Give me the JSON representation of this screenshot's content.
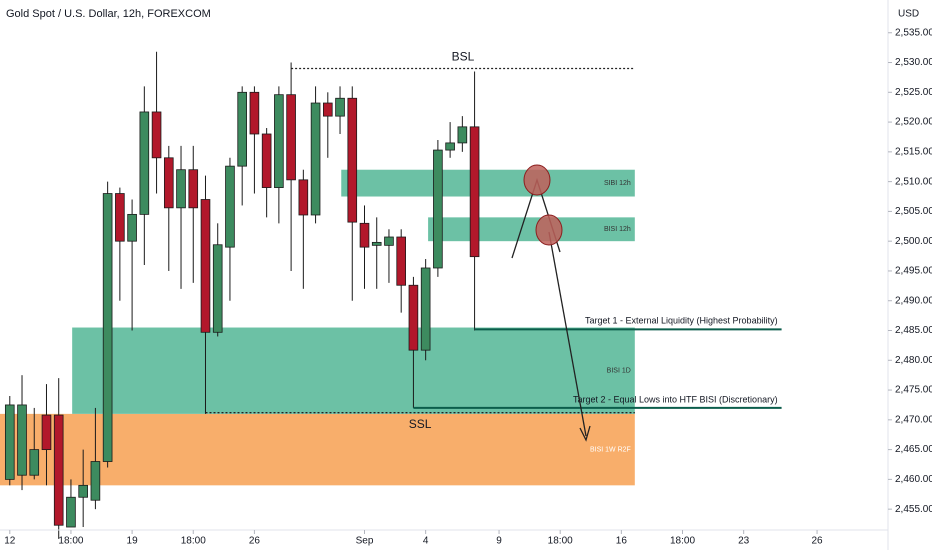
{
  "chart_data": {
    "type": "candlestick",
    "title": "Gold Spot / U.S. Dollar, 12h, FOREXCOM",
    "currency": "USD",
    "up_color": "#3d8b5f",
    "down_color": "#b2182b",
    "open": [
      2460,
      2460.7,
      2460.7,
      2470.8,
      2470.8,
      2452,
      2457,
      2456.5,
      2463,
      2508,
      2500,
      2504.5,
      2521.7,
      2514,
      2505.6,
      2512,
      2507,
      2484.7,
      2499,
      2512.6,
      2525,
      2518,
      2509,
      2524.6,
      2510.3,
      2504.4,
      2523.2,
      2521,
      2524,
      2503,
      2499.3,
      2499.3,
      2500.7,
      2492.6,
      2481.7,
      2495.5,
      2515.3,
      2516.5,
      2519.2
    ],
    "high": [
      2474,
      2477.5,
      2472,
      2476,
      2477,
      2460,
      2465,
      2472,
      2510,
      2509,
      2507,
      2526,
      2531.8,
      2516,
      2516,
      2516,
      2511,
      2503,
      2514,
      2526,
      2526,
      2519,
      2526,
      2530,
      2512,
      2526,
      2525,
      2526,
      2526,
      2506,
      2504,
      2502,
      2502,
      2494,
      2497,
      2517,
      2520,
      2521,
      2528.5
    ],
    "low": [
      2459,
      2458.2,
      2460,
      2459,
      2450,
      2452,
      2452,
      2455,
      2462,
      2490,
      2485,
      2496,
      2508,
      2495,
      2492,
      2493,
      2471,
      2484,
      2490,
      2506,
      2508,
      2504,
      2503,
      2495,
      2492,
      2503,
      2514,
      2518,
      2490,
      2492,
      2492,
      2493,
      2488,
      2472,
      2480,
      2494,
      2514,
      2515,
      2485
    ],
    "close": [
      2472.5,
      2472.5,
      2465,
      2465,
      2452.3,
      2457,
      2459,
      2463,
      2508,
      2500,
      2504.5,
      2521.7,
      2514,
      2505.6,
      2512,
      2505.6,
      2484.7,
      2499.4,
      2512.6,
      2525,
      2518,
      2509,
      2524.6,
      2510.3,
      2504.4,
      2523.2,
      2521,
      2524,
      2503.2,
      2499,
      2499.8,
      2500.7,
      2492.6,
      2481.7,
      2495.5,
      2515.3,
      2516.5,
      2519.2,
      2497.4
    ],
    "xlim": [
      -0.8,
      71.8
    ],
    "ylim": [
      2451.5,
      2540.5
    ],
    "yticks": [
      {
        "value": 2455,
        "label": "2,455.00"
      },
      {
        "value": 2460,
        "label": "2,460.00"
      },
      {
        "value": 2465,
        "label": "2,465.00"
      },
      {
        "value": 2470,
        "label": "2,470.00"
      },
      {
        "value": 2475,
        "label": "2,475.00"
      },
      {
        "value": 2480,
        "label": "2,480.00"
      },
      {
        "value": 2485,
        "label": "2,485.00"
      },
      {
        "value": 2490,
        "label": "2,490.00"
      },
      {
        "value": 2495,
        "label": "2,495.00"
      },
      {
        "value": 2500,
        "label": "2,500.00"
      },
      {
        "value": 2505,
        "label": "2,505.00"
      },
      {
        "value": 2510,
        "label": "2,510.00"
      },
      {
        "value": 2515,
        "label": "2,515.00"
      },
      {
        "value": 2520,
        "label": "2,520.00"
      },
      {
        "value": 2525,
        "label": "2,525.00"
      },
      {
        "value": 2530,
        "label": "2,530.00"
      },
      {
        "value": 2535,
        "label": "2,535.00"
      }
    ],
    "xticks": [
      {
        "value": 0,
        "label": "12"
      },
      {
        "value": 5,
        "label": "18:00"
      },
      {
        "value": 10,
        "label": "19"
      },
      {
        "value": 15,
        "label": "18:00"
      },
      {
        "value": 20,
        "label": "26"
      },
      {
        "value": 29,
        "label": "Sep"
      },
      {
        "value": 34,
        "label": "4"
      },
      {
        "value": 40,
        "label": "9"
      },
      {
        "value": 45,
        "label": "18:00"
      },
      {
        "value": 50,
        "label": "16"
      },
      {
        "value": 55,
        "label": "18:00"
      },
      {
        "value": 60,
        "label": "23"
      },
      {
        "value": 66,
        "label": "26"
      }
    ],
    "zones": [
      {
        "label": "BISI 1W R2F",
        "low": 2459,
        "high": 2471,
        "start": -0.8,
        "end": 51.1,
        "color": "#f8ae6b",
        "text_color": "#ffffff"
      },
      {
        "label": "BISI 1D",
        "low": 2471,
        "high": 2485.5,
        "start": 5.1,
        "end": 51.1,
        "color": "#6cc1a5",
        "text_color": "#333333"
      },
      {
        "label": "SIBI 12h",
        "low": 2507.5,
        "high": 2512,
        "start": 27.1,
        "end": 51.1,
        "color": "#6cc1a5",
        "text_color": "#333333"
      },
      {
        "label": "BISI 12h",
        "low": 2500,
        "high": 2504,
        "start": 34.2,
        "end": 51.1,
        "color": "#6cc1a5",
        "text_color": "#333333"
      }
    ],
    "levels": [
      {
        "label": "BSL",
        "value": 2529,
        "start": 23,
        "end": 51.1
      },
      {
        "label": "SSL",
        "value": 2471.2,
        "start": 16,
        "end": 51.1
      }
    ],
    "targets": [
      {
        "label": "Target 1 - External Liquidity (Highest Probability)",
        "value": 2485.2,
        "start": 38,
        "end": 63.1
      },
      {
        "label": "Target 2 - Equal Lows into HTF BISI (Discretionary)",
        "value": 2472,
        "start": 33,
        "end": 63.1
      }
    ]
  }
}
